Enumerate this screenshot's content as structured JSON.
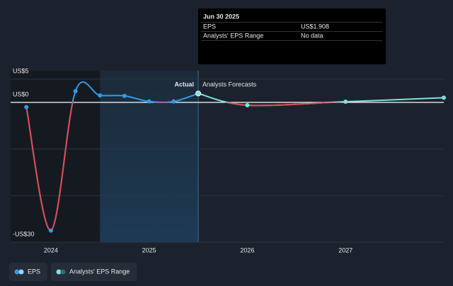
{
  "chart_data": {
    "type": "line",
    "xlim": [
      2023.59,
      2028
    ],
    "ylim": [
      -30,
      5
    ],
    "xticks": [
      {
        "value": 2024,
        "label": "2024"
      },
      {
        "value": 2025,
        "label": "2025"
      },
      {
        "value": 2026,
        "label": "2026"
      },
      {
        "value": 2027,
        "label": "2027"
      }
    ],
    "yticks": [
      {
        "value": 5,
        "label": "US$5"
      },
      {
        "value": 0,
        "label": "US$0"
      },
      {
        "value": -10,
        "label": null
      },
      {
        "value": -20,
        "label": null
      },
      {
        "value": -30,
        "label": "-US$30"
      }
    ],
    "grid": true,
    "negative_color": "#e5484d",
    "highlight": [
      2024.5,
      2025.5
    ],
    "annotations": {
      "actual": "Actual",
      "forecast": "Analysts Forecasts"
    },
    "series": [
      {
        "name": "EPS",
        "color": "#2f9be8",
        "x": [
          2023.75,
          2024.0,
          2024.25,
          2024.5,
          2024.75,
          2025.0,
          2025.25,
          2025.5
        ],
        "values": [
          -1,
          -27.5,
          2.4,
          1.5,
          1.4,
          0.2,
          0.2,
          1.908
        ]
      },
      {
        "name": "Analysts' EPS Range",
        "color": "#7fe0dc",
        "x": [
          2025.5,
          2026.0,
          2027.0,
          2028.0
        ],
        "values": [
          1.908,
          -0.6,
          0.15,
          1.0
        ]
      }
    ],
    "tooltip": {
      "title": "Jun 30 2025",
      "rows": [
        {
          "label": "EPS",
          "value": "US$1.908",
          "color": "#2f9be8"
        },
        {
          "label": "Analysts' EPS Range",
          "value": "No data",
          "color": "#777"
        }
      ]
    }
  }
}
